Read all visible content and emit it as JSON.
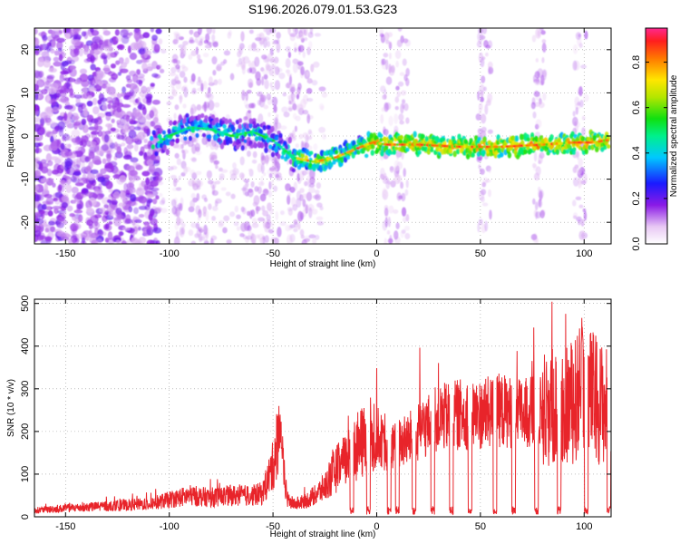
{
  "title": "S196.2026.079.01.53.G23",
  "chart_data": [
    {
      "type": "heatmap",
      "title": "S196.2026.079.01.53.G23",
      "xlabel": "Height of straight line (km)",
      "ylabel": "Frequency (Hz)",
      "xlim": [
        -165,
        113
      ],
      "ylim": [
        -25,
        25
      ],
      "xticks": [
        -150,
        -100,
        -50,
        0,
        50,
        100
      ],
      "yticks": [
        -20,
        -10,
        0,
        10,
        20
      ],
      "grid": true,
      "colorbar": {
        "label": "Normalized spectral amplitude",
        "range": [
          0,
          0.95
        ],
        "ticks": [
          0.0,
          0.2,
          0.4,
          0.6,
          0.8
        ]
      },
      "ridge_frequency_hz": {
        "x": [
          -107,
          -100,
          -90,
          -80,
          -70,
          -60,
          -50,
          -40,
          -30,
          -20,
          -10,
          -2,
          5,
          20,
          40,
          60,
          80,
          95,
          105,
          110
        ],
        "y": [
          -2,
          0,
          2,
          1.5,
          0,
          1,
          -1,
          -5,
          -6,
          -5,
          -3,
          -1.5,
          -2,
          -2,
          -2.5,
          -2.5,
          -2,
          -1.5,
          -1.5,
          -1
        ]
      }
    },
    {
      "type": "line",
      "xlabel": "Height of straight line (km)",
      "ylabel": "SNR (10 * v/v)",
      "xlim": [
        -165,
        113
      ],
      "ylim": [
        0,
        510
      ],
      "xticks": [
        -150,
        -100,
        -50,
        0,
        50,
        100
      ],
      "yticks": [
        0,
        100,
        200,
        300,
        400,
        500
      ],
      "grid": true,
      "series": [
        {
          "name": "SNR",
          "color": "#e8242a",
          "x": [
            -165,
            -150,
            -130,
            -110,
            -100,
            -90,
            -80,
            -70,
            -60,
            -55,
            -50,
            -47,
            -45,
            -43,
            -40,
            -35,
            -30,
            -25,
            -20,
            -15,
            -10,
            -5,
            0,
            5,
            10,
            15,
            20,
            30,
            40,
            50,
            60,
            70,
            80,
            90,
            95,
            100,
            105,
            110,
            113
          ],
          "values": [
            15,
            20,
            25,
            30,
            40,
            50,
            45,
            50,
            50,
            55,
            120,
            200,
            110,
            40,
            30,
            35,
            50,
            70,
            110,
            130,
            160,
            180,
            200,
            150,
            170,
            180,
            200,
            230,
            240,
            240,
            250,
            240,
            250,
            260,
            270,
            300,
            280,
            260,
            260
          ]
        }
      ]
    }
  ]
}
